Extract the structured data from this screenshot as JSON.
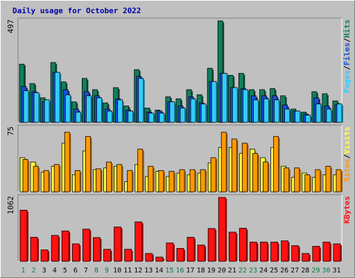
{
  "title": "Daily usage for October 2022",
  "colors": {
    "hits": "#117f5c",
    "files": "#1750d8",
    "pages": "#33ccff",
    "visits": "#ffff44",
    "sites": "#ff9900",
    "kbytes": "#ff1111",
    "weekday_label": "#000000",
    "weekend_label": "#007f3f"
  },
  "chart_data": [
    {
      "type": "bar",
      "panel": "hits-files-pages",
      "categories": [
        "1",
        "2",
        "3",
        "4",
        "5",
        "6",
        "7",
        "8",
        "9",
        "10",
        "11",
        "12",
        "13",
        "14",
        "15",
        "16",
        "17",
        "18",
        "19",
        "20",
        "21",
        "22",
        "23",
        "24",
        "25",
        "26",
        "27",
        "28",
        "29",
        "30",
        "31"
      ],
      "ylim": [
        0,
        497
      ],
      "y_max_label": "497",
      "legend": [
        {
          "text": "Pages",
          "color": "#33ccff"
        },
        {
          "text": "/",
          "color": "#000000"
        },
        {
          "text": "Files",
          "color": "#1750d8"
        },
        {
          "text": "/",
          "color": "#000000"
        },
        {
          "text": "Hits",
          "color": "#117f5c"
        }
      ],
      "series": [
        {
          "name": "Hits",
          "values": [
            285,
            190,
            120,
            293,
            198,
            100,
            215,
            160,
            95,
            170,
            80,
            258,
            70,
            60,
            125,
            115,
            160,
            135,
            265,
            497,
            230,
            240,
            160,
            160,
            165,
            130,
            65,
            50,
            150,
            140,
            105
          ]
        },
        {
          "name": "Files",
          "values": [
            175,
            150,
            100,
            245,
            160,
            65,
            150,
            130,
            65,
            115,
            60,
            225,
            50,
            55,
            100,
            80,
            125,
            95,
            200,
            240,
            170,
            165,
            130,
            130,
            130,
            85,
            55,
            40,
            120,
            80,
            85
          ]
        },
        {
          "name": "Pages",
          "values": [
            155,
            145,
            110,
            245,
            135,
            50,
            130,
            120,
            55,
            110,
            55,
            215,
            45,
            45,
            100,
            70,
            115,
            90,
            200,
            240,
            170,
            160,
            110,
            115,
            110,
            65,
            55,
            35,
            90,
            65,
            90
          ]
        }
      ]
    },
    {
      "type": "bar",
      "panel": "visits-sites",
      "categories": [
        "1",
        "2",
        "3",
        "4",
        "5",
        "6",
        "7",
        "8",
        "9",
        "10",
        "11",
        "12",
        "13",
        "14",
        "15",
        "16",
        "17",
        "18",
        "19",
        "20",
        "21",
        "22",
        "23",
        "24",
        "25",
        "26",
        "27",
        "28",
        "29",
        "30",
        "31"
      ],
      "ylim": [
        0,
        75
      ],
      "y_max_label": "75",
      "legend": [
        {
          "text": "Sites",
          "color": "#ff9900"
        },
        {
          "text": "/",
          "color": "#000000"
        },
        {
          "text": "Visits",
          "color": "#ffff44"
        }
      ],
      "series": [
        {
          "name": "Visits",
          "values": [
            40,
            35,
            23,
            30,
            57,
            20,
            48,
            26,
            28,
            30,
            12,
            32,
            18,
            24,
            18,
            22,
            20,
            22,
            34,
            52,
            52,
            45,
            50,
            40,
            52,
            30,
            17,
            22,
            17,
            20,
            20
          ]
        },
        {
          "name": "Sites",
          "values": [
            38,
            30,
            25,
            32,
            70,
            25,
            65,
            27,
            35,
            32,
            25,
            50,
            30,
            25,
            24,
            26,
            26,
            26,
            40,
            70,
            62,
            57,
            45,
            35,
            65,
            28,
            28,
            20,
            26,
            30,
            26
          ]
        }
      ]
    },
    {
      "type": "bar",
      "panel": "kbytes",
      "categories": [
        "1",
        "2",
        "3",
        "4",
        "5",
        "6",
        "7",
        "8",
        "9",
        "10",
        "11",
        "12",
        "13",
        "14",
        "15",
        "16",
        "17",
        "18",
        "19",
        "20",
        "21",
        "22",
        "23",
        "24",
        "25",
        "26",
        "27",
        "28",
        "29",
        "30",
        "31"
      ],
      "ylim": [
        0,
        1062
      ],
      "y_max_label": "1062",
      "legend": [
        {
          "text": "KBytes",
          "color": "#ff1111"
        }
      ],
      "series": [
        {
          "name": "KBytes",
          "values": [
            850,
            400,
            190,
            430,
            505,
            290,
            535,
            395,
            200,
            570,
            200,
            655,
            130,
            70,
            305,
            215,
            400,
            270,
            545,
            1062,
            485,
            550,
            320,
            320,
            320,
            340,
            260,
            130,
            250,
            320,
            290
          ]
        }
      ]
    }
  ],
  "x_axis": {
    "labels": [
      "1",
      "2",
      "3",
      "4",
      "5",
      "6",
      "7",
      "8",
      "9",
      "10",
      "11",
      "12",
      "13",
      "14",
      "15",
      "16",
      "17",
      "18",
      "19",
      "20",
      "21",
      "22",
      "23",
      "24",
      "25",
      "26",
      "27",
      "28",
      "29",
      "30",
      "31"
    ],
    "weekend_days": [
      1,
      2,
      8,
      9,
      15,
      16,
      22,
      23,
      29,
      30
    ]
  }
}
